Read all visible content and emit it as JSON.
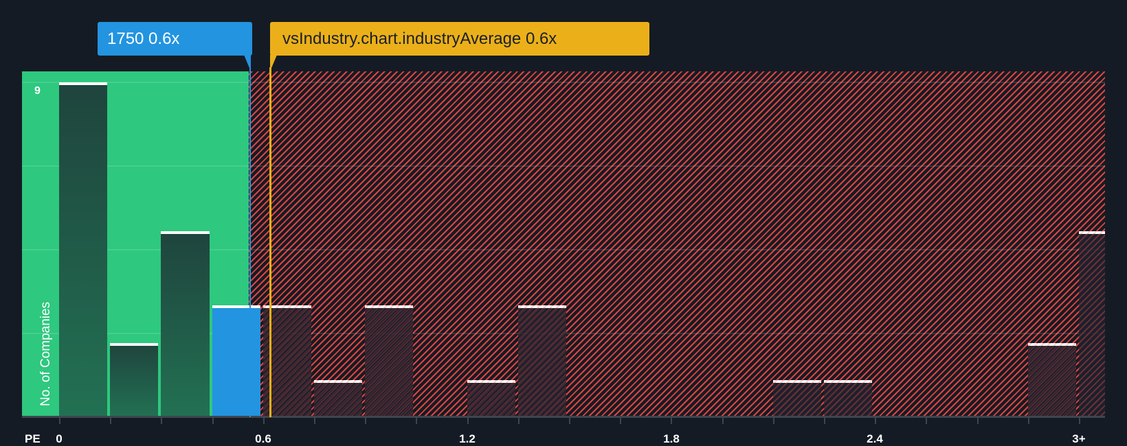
{
  "callouts": {
    "company": {
      "label": "1750 0.6x",
      "color": "#2394e0"
    },
    "industry": {
      "label": "vsIndustry.chart.industryAverage 0.6x",
      "color": "#ebb019"
    }
  },
  "axes": {
    "x_title": "PE",
    "y_title": "No. of Companies",
    "y_max_label": "9",
    "x_ticks": [
      "0",
      "0.6",
      "1.2",
      "1.8",
      "2.4",
      "3+"
    ]
  },
  "colors": {
    "background": "#151b24",
    "good_zone": "#2ec87f",
    "bad_zone_stripe": "#e0433f",
    "company_bar": "#2394e0",
    "industry_line": "#ebb019"
  },
  "chart_data": {
    "type": "bar",
    "title": "",
    "xlabel": "PE",
    "ylabel": "No. of Companies",
    "x_bin_edges": [
      0,
      0.15,
      0.3,
      0.45,
      0.6,
      0.75,
      0.9,
      1.05,
      1.2,
      1.35,
      1.5,
      1.65,
      1.8,
      1.95,
      2.1,
      2.25,
      2.4,
      2.55,
      2.7,
      2.85,
      3.0
    ],
    "categories": [
      "0-0.15",
      "0.15-0.3",
      "0.3-0.45",
      "0.45-0.6",
      "0.6-0.75",
      "0.75-0.9",
      "0.9-1.05",
      "1.05-1.2",
      "1.2-1.35",
      "1.35-1.5",
      "1.5-1.65",
      "1.65-1.8",
      "1.8-1.95",
      "1.95-2.1",
      "2.1-2.25",
      "2.25-2.4",
      "2.4-2.55",
      "2.55-2.7",
      "2.7-2.85",
      "2.85-3.0",
      "3+"
    ],
    "values": [
      9,
      2,
      5,
      3,
      3,
      1,
      3,
      0,
      1,
      3,
      0,
      0,
      0,
      0,
      1,
      1,
      0,
      0,
      0,
      2,
      5
    ],
    "highlight_bin": "0.45-0.6",
    "company_value": 0.6,
    "company_label": "1750 0.6x",
    "industry_average": 0.6,
    "industry_label": "vsIndustry.chart.industryAverage 0.6x",
    "ylim": [
      0,
      9
    ],
    "x_tick_labels": [
      "0",
      "0.6",
      "1.2",
      "1.8",
      "2.4",
      "3+"
    ],
    "grid": true,
    "legend": null
  }
}
